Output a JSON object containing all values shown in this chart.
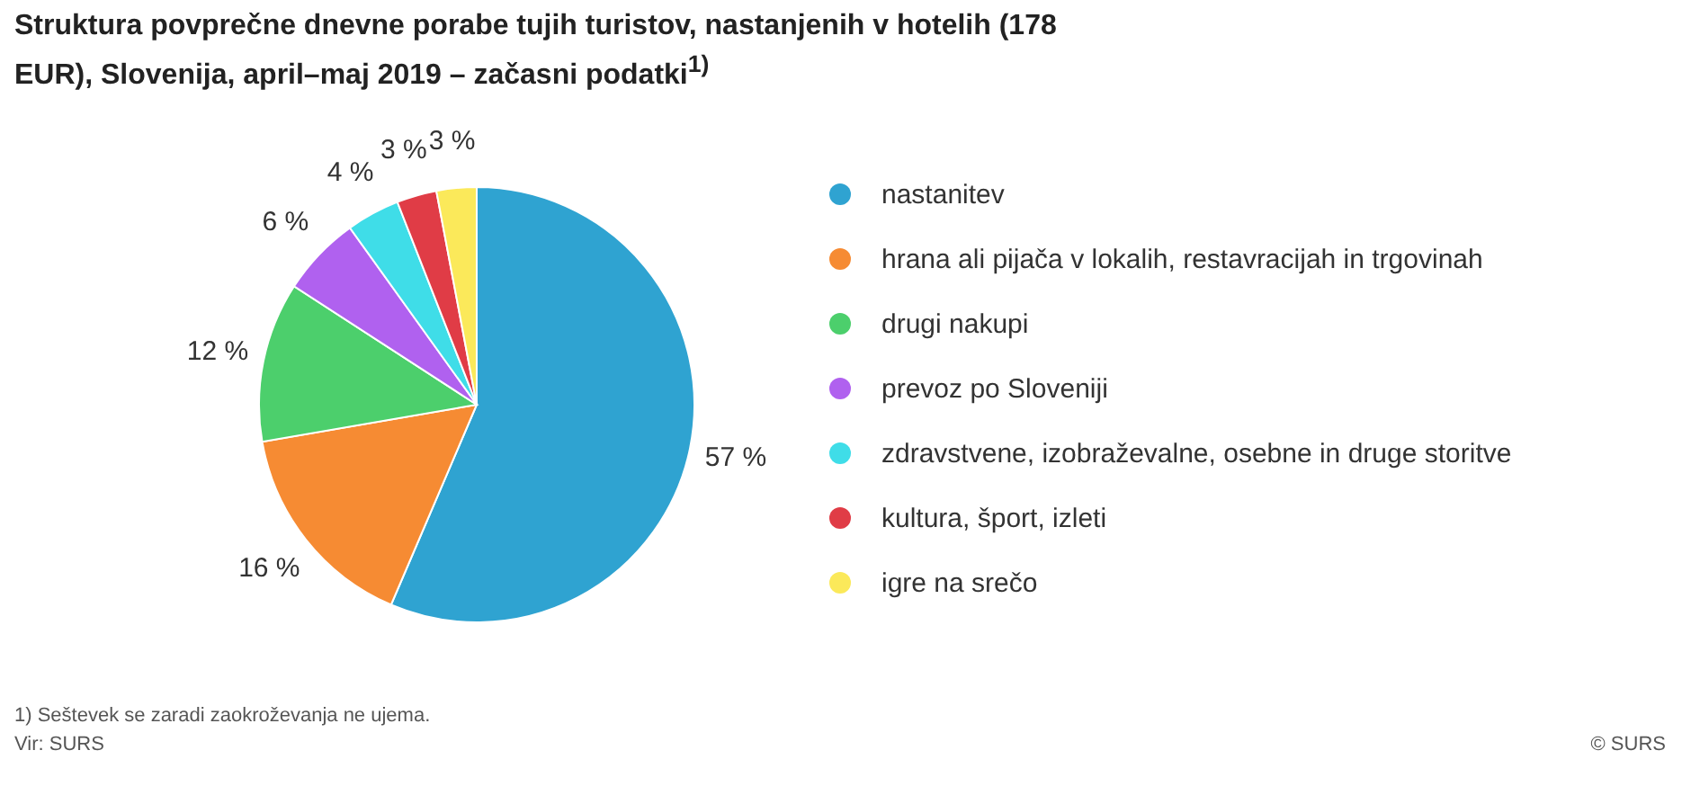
{
  "chart_data": {
    "type": "pie",
    "title": "Struktura povprečne dnevne porabe tujih turistov, nastanjenih v hotelih (178 EUR), Slovenija, april–maj 2019 – začasni podatki$^{1)}$",
    "categories": [
      "nastanitev",
      "hrana ali pijača v lokalih, restavracijah in trgovinah",
      "drugi nakupi",
      "prevoz po Sloveniji",
      "zdravstvene, izobraževalne, osebne in druge storitve",
      "kultura, šport, izleti",
      "igre na srečo"
    ],
    "values": [
      57,
      16,
      12,
      6,
      4,
      3,
      3
    ],
    "value_labels": [
      "57 %",
      "16 %",
      "12 %",
      "6 %",
      "4 %",
      "3 %",
      "3 %"
    ],
    "colors": [
      "#2fa3d1",
      "#f68b33",
      "#4ccf6c",
      "#b061ef",
      "#3fdde8",
      "#e03c46",
      "#fbe95a"
    ],
    "legend": "right",
    "annotations": [
      "1) Seštevek se zaradi zaokroževanja ne ujema.",
      "Vir: SURS",
      "© SURS"
    ]
  }
}
